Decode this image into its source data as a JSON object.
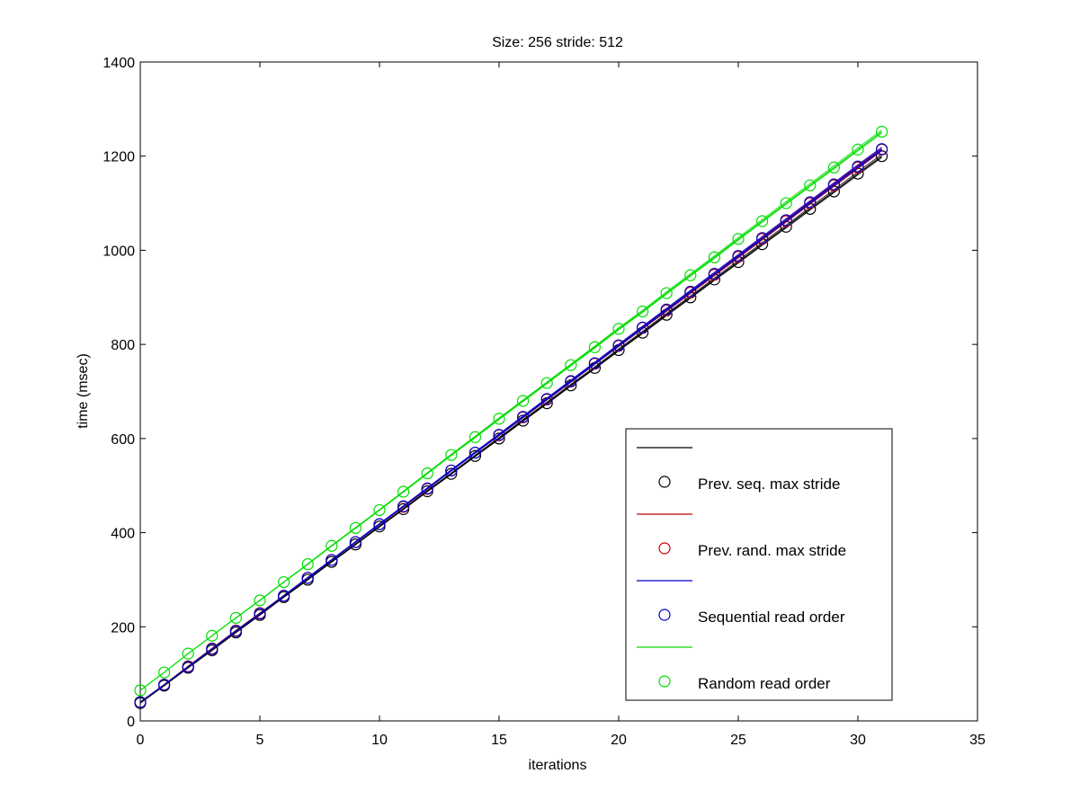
{
  "chart_data": {
    "type": "line",
    "title": "Size: 256 stride: 512",
    "xlabel": "iterations",
    "ylabel": "time (msec)",
    "xlim": [
      0,
      35
    ],
    "ylim": [
      0,
      1400
    ],
    "xticks": [
      0,
      5,
      10,
      15,
      20,
      25,
      30,
      35
    ],
    "yticks": [
      0,
      200,
      400,
      600,
      800,
      1000,
      1200,
      1400
    ],
    "grid": false,
    "legend_position": "bottom-right",
    "x": [
      0,
      1,
      2,
      3,
      4,
      5,
      6,
      7,
      8,
      9,
      10,
      11,
      12,
      13,
      14,
      15,
      16,
      17,
      18,
      19,
      20,
      21,
      22,
      23,
      24,
      25,
      26,
      27,
      28,
      29,
      30,
      31
    ],
    "series": [
      {
        "name": "Prev. seq. max stride",
        "color": "#000000",
        "marker": "circle",
        "values": [
          38,
          75,
          113,
          150,
          188,
          225,
          263,
          300,
          338,
          375,
          413,
          450,
          488,
          525,
          563,
          600,
          638,
          675,
          713,
          750,
          788,
          825,
          863,
          900,
          938,
          975,
          1013,
          1050,
          1088,
          1125,
          1163,
          1200
        ]
      },
      {
        "name": "Prev. rand. max stride",
        "color": "#cc0000",
        "marker": "circle",
        "values": [
          40,
          77,
          116,
          154,
          192,
          229,
          266,
          304,
          342,
          380,
          418,
          455,
          493,
          532,
          570,
          607,
          645,
          683,
          721,
          759,
          797,
          835,
          872,
          910,
          948,
          986,
          1024,
          1062,
          1100,
          1138,
          1176,
          1214
        ]
      },
      {
        "name": "Sequential read order",
        "color": "#0000cc",
        "marker": "circle",
        "values": [
          40,
          77,
          115,
          153,
          191,
          228,
          266,
          304,
          342,
          380,
          418,
          456,
          494,
          532,
          570,
          608,
          646,
          684,
          722,
          760,
          798,
          836,
          874,
          912,
          950,
          988,
          1026,
          1064,
          1102,
          1140,
          1178,
          1215
        ]
      },
      {
        "name": "Random read order",
        "color": "#00dd00",
        "marker": "circle",
        "values": [
          65,
          103,
          143,
          181,
          219,
          256,
          295,
          333,
          372,
          410,
          448,
          487,
          526,
          565,
          603,
          642,
          680,
          718,
          756,
          794,
          833,
          870,
          909,
          947,
          985,
          1024,
          1062,
          1100,
          1138,
          1176,
          1214,
          1252
        ]
      }
    ]
  }
}
